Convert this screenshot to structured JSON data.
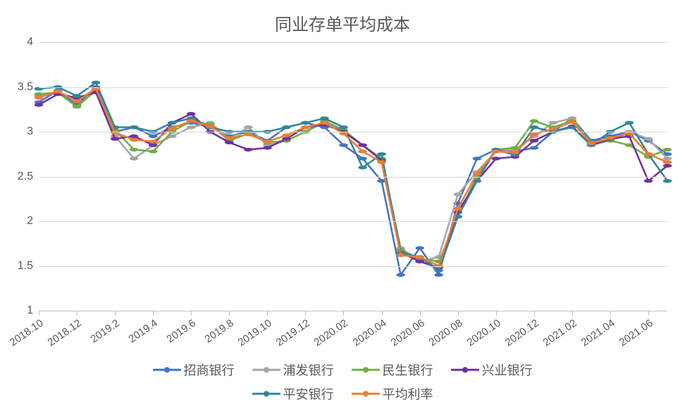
{
  "chart": {
    "type": "line",
    "title": "同业存单平均成本",
    "title_fontsize": 24,
    "title_color": "#595959",
    "background_color": "#ffffff",
    "grid_color": "#d9d9d9",
    "axis_color": "#bfbfbf",
    "label_color": "#595959",
    "label_fontsize": 16,
    "line_width": 2.5,
    "marker_size": 4,
    "ylim": [
      1,
      4
    ],
    "ytick_step": 0.5,
    "yticks": [
      1,
      1.5,
      2,
      2.5,
      3,
      3.5,
      4
    ],
    "x_rotation_deg": -35,
    "categories": [
      "2018.10",
      "2018.11",
      "2018.12",
      "2019.01",
      "2019.2",
      "2019.3",
      "2019.4",
      "2019.5",
      "2019.6",
      "2019.7",
      "2019.8",
      "2019.9",
      "2019.10",
      "2019.11",
      "2019.12",
      "2020.01",
      "2020.02",
      "2020.03",
      "2020.04",
      "2020.05",
      "2020.06",
      "2020.07",
      "2020.08",
      "2020.09",
      "2020.10",
      "2020.11",
      "2020.12",
      "2021.01",
      "2021.02",
      "2021.03",
      "2021.04",
      "2021.05",
      "2021.06",
      "2021.07"
    ],
    "x_tick_labels": [
      "2018.10",
      "2018.12",
      "2019.2",
      "2019.4",
      "2019.6",
      "2019.8",
      "2019.10",
      "2019.12",
      "2020.02",
      "2020.04",
      "2020.06",
      "2020.08",
      "2020.10",
      "2020.12",
      "2021.02",
      "2021.04",
      "2021.06"
    ],
    "series": [
      {
        "name": "招商银行",
        "color": "#4472c4",
        "values": [
          3.33,
          3.46,
          3.3,
          3.5,
          3.0,
          3.05,
          2.95,
          3.05,
          3.1,
          3.05,
          2.95,
          3.0,
          2.9,
          3.05,
          3.1,
          3.05,
          2.85,
          2.7,
          2.45,
          1.4,
          1.7,
          1.4,
          2.2,
          2.7,
          2.8,
          2.78,
          2.82,
          3.0,
          3.15,
          2.9,
          2.95,
          3.0,
          2.9,
          2.75
        ]
      },
      {
        "name": "浦发银行",
        "color": "#a5a5a5",
        "values": [
          3.4,
          3.45,
          3.35,
          3.48,
          2.95,
          2.7,
          2.85,
          2.95,
          3.05,
          3.1,
          2.92,
          3.05,
          2.85,
          2.9,
          3.0,
          3.1,
          3.0,
          2.85,
          2.7,
          1.7,
          1.55,
          1.6,
          2.3,
          2.55,
          2.78,
          2.8,
          2.95,
          3.1,
          3.15,
          2.85,
          2.9,
          3.0,
          2.92,
          2.7
        ]
      },
      {
        "name": "民生银行",
        "color": "#70ad47",
        "values": [
          3.42,
          3.44,
          3.28,
          3.46,
          3.02,
          2.8,
          2.78,
          3.0,
          3.12,
          3.08,
          2.9,
          2.98,
          2.88,
          2.9,
          3.0,
          3.12,
          3.02,
          2.85,
          2.7,
          1.68,
          1.58,
          1.55,
          2.05,
          2.5,
          2.8,
          2.82,
          3.12,
          3.05,
          3.12,
          2.88,
          2.9,
          2.85,
          2.72,
          2.8
        ]
      },
      {
        "name": "兴业银行",
        "color": "#7030a0",
        "values": [
          3.3,
          3.42,
          3.38,
          3.44,
          2.92,
          2.95,
          2.85,
          3.1,
          3.2,
          3.0,
          2.88,
          2.8,
          2.82,
          2.92,
          3.05,
          3.08,
          3.0,
          2.85,
          2.68,
          1.65,
          1.55,
          1.48,
          2.1,
          2.45,
          2.7,
          2.72,
          2.9,
          3.0,
          3.06,
          2.85,
          2.92,
          2.95,
          2.45,
          2.62
        ]
      },
      {
        "name": "平安银行",
        "color": "#31859c",
        "values": [
          3.48,
          3.5,
          3.4,
          3.55,
          3.05,
          3.05,
          3.0,
          3.1,
          3.15,
          3.05,
          3.0,
          3.0,
          3.0,
          3.05,
          3.1,
          3.15,
          3.05,
          2.6,
          2.75,
          1.65,
          1.6,
          1.45,
          2.05,
          2.45,
          2.8,
          2.74,
          3.05,
          3.0,
          3.05,
          2.85,
          3.0,
          3.1,
          2.75,
          2.45
        ]
      },
      {
        "name": "平均利率",
        "color": "#ed7d31",
        "values": [
          3.38,
          3.45,
          3.34,
          3.48,
          2.99,
          2.91,
          2.89,
          3.04,
          3.12,
          3.06,
          2.93,
          2.97,
          2.89,
          2.96,
          3.05,
          3.1,
          2.98,
          2.78,
          2.66,
          1.62,
          1.6,
          1.5,
          2.14,
          2.53,
          2.78,
          2.77,
          2.97,
          3.03,
          3.11,
          2.87,
          2.93,
          2.98,
          2.75,
          2.66
        ]
      }
    ],
    "legend": {
      "position": "bottom",
      "columns": 3,
      "fontsize": 18
    }
  }
}
